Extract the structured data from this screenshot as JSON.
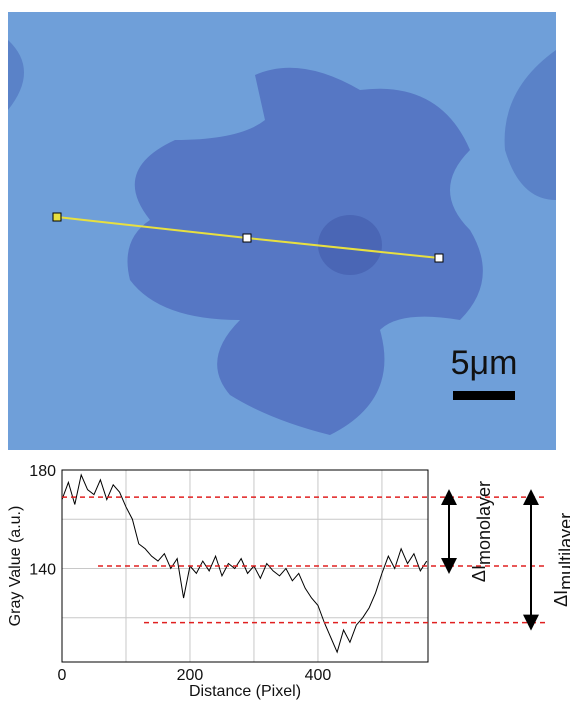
{
  "chart_data": {
    "type": "line",
    "image_annotation": {
      "scale_bar": "5μm"
    },
    "xlabel": "Distance (Pixel)",
    "ylabel": "Gray Value (a.u.)",
    "x": [
      0,
      10,
      20,
      30,
      40,
      50,
      60,
      70,
      80,
      90,
      100,
      110,
      120,
      130,
      140,
      150,
      160,
      170,
      180,
      190,
      200,
      210,
      220,
      230,
      240,
      250,
      260,
      270,
      280,
      290,
      300,
      310,
      320,
      330,
      340,
      350,
      360,
      370,
      380,
      390,
      400,
      410,
      420,
      430,
      440,
      450,
      460,
      470,
      480,
      490,
      500,
      510,
      520,
      530,
      540,
      550,
      560,
      570
    ],
    "series": [
      {
        "name": "Gray Value",
        "color": "#000000",
        "values": [
          168,
          175,
          166,
          178,
          172,
          170,
          176,
          168,
          174,
          171,
          165,
          160,
          150,
          148,
          145,
          143,
          146,
          140,
          144,
          128,
          141,
          138,
          143,
          139,
          145,
          137,
          142,
          140,
          144,
          138,
          141,
          136,
          142,
          139,
          137,
          140,
          135,
          138,
          132,
          128,
          125,
          118,
          112,
          106,
          115,
          110,
          117,
          120,
          124,
          130,
          138,
          145,
          140,
          148,
          142,
          146,
          139,
          143
        ]
      }
    ],
    "xlim": [
      0,
      572
    ],
    "ylim": [
      102,
      180
    ],
    "xticks": [
      0,
      {
        "value": 100,
        "label": null
      },
      200,
      {
        "value": 300,
        "label": null
      },
      400,
      {
        "value": 500,
        "label": null
      }
    ],
    "yticks": [
      {
        "value": 120,
        "label": null
      },
      140,
      {
        "value": 160,
        "label": null
      },
      180
    ],
    "grid": true,
    "reference_lines": {
      "color": "#e02020",
      "values": [
        169,
        141,
        118
      ]
    },
    "annotations": [
      {
        "symbol": "ΔI",
        "subscript": "monolayer",
        "from": 169,
        "to": 141
      },
      {
        "symbol": "ΔI",
        "subscript": "multilayer",
        "from": 169,
        "to": 118
      }
    ]
  }
}
